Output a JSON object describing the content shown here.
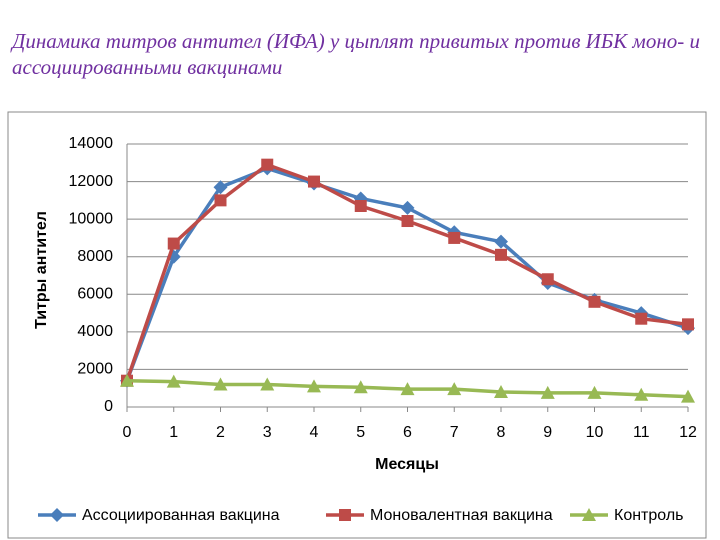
{
  "chart_data": {
    "type": "line",
    "title": "Динамика титров антител (ИФА) у цыплят привитых против ИБК моно- и ассоциированными вакцинами",
    "x_label": "Месяцы",
    "y_label": "Титры антител",
    "x": [
      0,
      1,
      2,
      3,
      4,
      5,
      6,
      7,
      8,
      9,
      10,
      11,
      12
    ],
    "xlim": [
      0,
      12
    ],
    "xticks": [
      0,
      1,
      2,
      3,
      4,
      5,
      6,
      7,
      8,
      9,
      10,
      11,
      12
    ],
    "ylim": [
      0,
      14000
    ],
    "yticks": [
      0,
      2000,
      4000,
      6000,
      8000,
      10000,
      12000,
      14000
    ],
    "grid": true,
    "legend": "bottom",
    "series": [
      {
        "name": "Ассоциированная вакцина",
        "color": "#4a7ebb",
        "marker": "diamond",
        "values": [
          1400,
          8000,
          11700,
          12700,
          11900,
          11100,
          10600,
          9300,
          8800,
          6600,
          5700,
          5000,
          4200
        ]
      },
      {
        "name": "Моновалентная вакцина",
        "color": "#be4b48",
        "marker": "square",
        "values": [
          1400,
          8700,
          11000,
          12900,
          12000,
          10700,
          9900,
          9000,
          8100,
          6800,
          5600,
          4700,
          4400
        ]
      },
      {
        "name": "Контроль",
        "color": "#98b954",
        "marker": "triangle",
        "values": [
          1400,
          1350,
          1200,
          1200,
          1100,
          1050,
          950,
          950,
          800,
          750,
          750,
          650,
          550
        ]
      }
    ]
  }
}
